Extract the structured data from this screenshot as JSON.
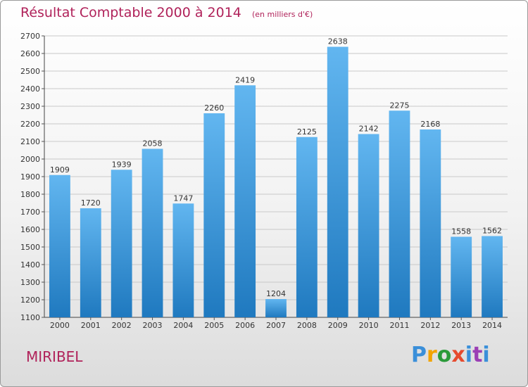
{
  "title": "Résultat Comptable 2000 à 2014",
  "unit": "(en milliers d'€)",
  "place": "MIRIBEL",
  "logo": [
    "P",
    "r",
    "o",
    "x",
    "i",
    "t",
    "i"
  ],
  "colors": {
    "title": "#b0225a",
    "bar_top": "#5fb3ee",
    "bar_bottom": "#1f7ac0",
    "grid": "#c8c8c8"
  },
  "chart_data": {
    "type": "bar",
    "categories": [
      "2000",
      "2001",
      "2002",
      "2003",
      "2004",
      "2005",
      "2006",
      "2007",
      "2008",
      "2009",
      "2010",
      "2011",
      "2012",
      "2013",
      "2014"
    ],
    "values": [
      1909,
      1720,
      1939,
      2058,
      1747,
      2260,
      2419,
      1204,
      2125,
      2638,
      2142,
      2275,
      2168,
      1558,
      1562
    ],
    "yticks": [
      1100,
      1200,
      1300,
      1400,
      1500,
      1600,
      1700,
      1800,
      1900,
      2000,
      2100,
      2200,
      2300,
      2400,
      2500,
      2600,
      2700
    ],
    "ylim": [
      1100,
      2700
    ],
    "grid": true
  }
}
